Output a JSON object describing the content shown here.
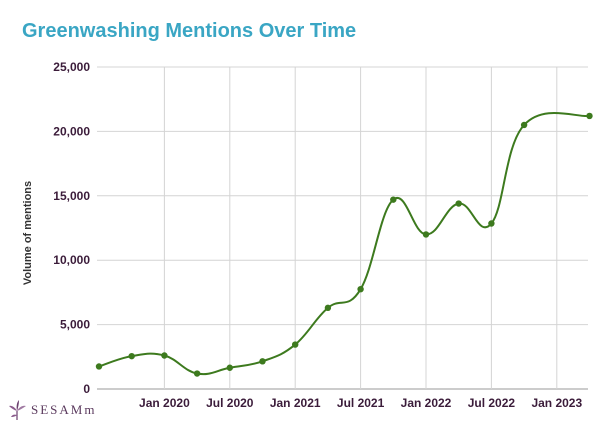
{
  "chart_data": {
    "type": "line",
    "title": "Greenwashing Mentions Over Time",
    "ylabel": "Volume of mentions",
    "xlabel": "",
    "ylim": [
      0,
      25000
    ],
    "y_ticks": [
      "0",
      "5,000",
      "10,000",
      "15,000",
      "20,000",
      "25,000"
    ],
    "x_ticks": [
      "Jan 2020",
      "Jul 2020",
      "Jan 2021",
      "Jul 2021",
      "Jan 2022",
      "Jul 2022",
      "Jan 2023"
    ],
    "grid": true,
    "series": [
      {
        "color": "#3d7a1e",
        "x": [
          "2019-07",
          "2019-10",
          "2020-01",
          "2020-04",
          "2020-07",
          "2020-10",
          "2021-01",
          "2021-04",
          "2021-07",
          "2021-10",
          "2022-01",
          "2022-04",
          "2022-07",
          "2022-10",
          "2023-04"
        ],
        "values": [
          1750,
          2550,
          2600,
          1200,
          1650,
          2150,
          3450,
          6300,
          7750,
          14700,
          12000,
          14400,
          12850,
          20500,
          21200
        ]
      }
    ]
  },
  "logo": {
    "text": "SESAMm"
  }
}
